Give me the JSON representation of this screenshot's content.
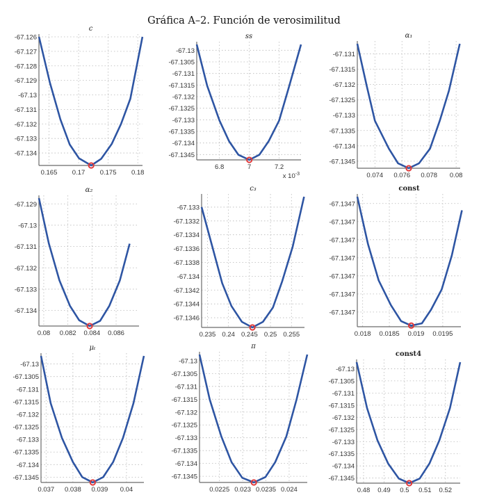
{
  "title": "Gráfica A–2. Función de verosimilitud",
  "colors": {
    "line": "#2e55a3",
    "minimum_marker": "#e23a3a",
    "grid": "#b8b8b8"
  },
  "chart_data": [
    {
      "type": "line",
      "title": "c",
      "grid": true,
      "xlim": [
        0.1633,
        0.1808
      ],
      "ylim": [
        -67.13486,
        -67.126
      ],
      "xticks": [
        0.165,
        0.17,
        0.175,
        0.18
      ],
      "xtick_labels": [
        "0.165",
        "0.17",
        "0.175",
        "0.18"
      ],
      "yticks": [
        -67.126,
        -67.127,
        -67.128,
        -67.129,
        -67.13,
        -67.131,
        -67.132,
        -67.133,
        -67.134
      ],
      "ytick_labels": [
        "-67.126",
        "-67.127",
        "-67.128",
        "-67.129",
        "-67.13",
        "-67.131",
        "-67.132",
        "-67.133",
        "-67.134"
      ],
      "x": [
        0.16331,
        0.16516,
        0.16693,
        0.1685,
        0.17008,
        0.17213,
        0.17382,
        0.17559,
        0.17717,
        0.17874,
        0.18079
      ],
      "y": [
        -67.126,
        -67.12916,
        -67.13169,
        -67.13342,
        -67.13437,
        -67.13486,
        -67.1344,
        -67.13339,
        -67.132,
        -67.13026,
        -67.126
      ],
      "minimum": [
        0.17213,
        -67.13486
      ]
    },
    {
      "type": "line",
      "title": "ss",
      "grid": true,
      "x_multiplier_label": "x 10",
      "x_multiplier_exponent": "-3",
      "xlim": [
        6.648,
        7.346
      ],
      "ylim": [
        -67.13473,
        -67.12975
      ],
      "xticks": [
        6.8,
        7,
        7.2
      ],
      "xtick_labels": [
        "6.8",
        "7",
        "7.2"
      ],
      "yticks": [
        -67.13,
        -67.1305,
        -67.131,
        -67.1315,
        -67.132,
        -67.1325,
        -67.133,
        -67.1335,
        -67.134,
        -67.1345
      ],
      "ytick_labels": [
        "-67.13",
        "-67.1305",
        "-67.131",
        "-67.1315",
        "-67.132",
        "-67.1325",
        "-67.133",
        "-67.1335",
        "-67.134",
        "-67.1345"
      ],
      "x": [
        6.648,
        6.718,
        6.8,
        6.865,
        6.927,
        7.0,
        7.067,
        7.129,
        7.2,
        7.268,
        7.346
      ],
      "y": [
        -67.12975,
        -67.13153,
        -67.13303,
        -67.13393,
        -67.13451,
        -67.13473,
        -67.13451,
        -67.13393,
        -67.13303,
        -67.13153,
        -67.12975
      ],
      "minimum": [
        7.0,
        -67.13473
      ]
    },
    {
      "type": "line",
      "title": "α₁",
      "grid": true,
      "xlim": [
        0.0727,
        0.0803
      ],
      "ylim": [
        -67.13473,
        -67.13067
      ],
      "xticks": [
        0.074,
        0.076,
        0.078,
        0.08
      ],
      "xtick_labels": [
        "0.074",
        "0.076",
        "0.078",
        "0.08"
      ],
      "yticks": [
        -67.131,
        -67.1315,
        -67.132,
        -67.1325,
        -67.133,
        -67.1335,
        -67.134,
        -67.1345
      ],
      "ytick_labels": [
        "-67.131",
        "-67.1315",
        "-67.132",
        "-67.1325",
        "-67.133",
        "-67.1335",
        "-67.134",
        "-67.1345"
      ],
      "x": [
        0.0727,
        0.0734,
        0.074,
        0.07503,
        0.07571,
        0.0765,
        0.07726,
        0.07807,
        0.07879,
        0.07947,
        0.08027
      ],
      "y": [
        -67.13067,
        -67.13205,
        -67.13318,
        -67.13409,
        -67.13457,
        -67.13473,
        -67.13457,
        -67.13409,
        -67.13318,
        -67.1322,
        -67.13067
      ],
      "minimum": [
        0.0765,
        -67.13473
      ]
    },
    {
      "type": "line",
      "title": "α₂",
      "grid": true,
      "xlim": [
        0.0796,
        0.0879
      ],
      "ylim": [
        -67.13473,
        -67.12873
      ],
      "xticks": [
        0.08,
        0.082,
        0.084,
        0.086
      ],
      "xtick_labels": [
        "0.08",
        "0.082",
        "0.084",
        "0.086"
      ],
      "yticks": [
        -67.129,
        -67.13,
        -67.131,
        -67.132,
        -67.133,
        -67.134
      ],
      "ytick_labels": [
        "-67.129",
        "-67.13",
        "-67.131",
        "-67.132",
        "-67.133",
        "-67.134"
      ],
      "x": [
        0.0796,
        0.08042,
        0.0813,
        0.08217,
        0.08294,
        0.08381,
        0.08467,
        0.08544,
        0.08631,
        0.08712
      ],
      "y": [
        -67.12873,
        -67.13085,
        -67.13259,
        -67.13378,
        -67.13446,
        -67.13473,
        -67.13449,
        -67.13378,
        -67.13259,
        -67.13087
      ],
      "minimum": [
        0.08381,
        -67.13473
      ]
    },
    {
      "type": "line",
      "title": "c₃",
      "grid": true,
      "xlim": [
        0.2336,
        0.2581
      ],
      "ylim": [
        -67.13474,
        -67.13285
      ],
      "xticks": [
        0.235,
        0.24,
        0.245,
        0.25,
        0.255
      ],
      "xtick_labels": [
        "0.235",
        "0.24",
        "0.245",
        "0.25",
        "0.255"
      ],
      "yticks": [
        -67.133,
        -67.1332,
        -67.1334,
        -67.1336,
        -67.1338,
        -67.134,
        -67.1342,
        -67.1344,
        -67.1346
      ],
      "ytick_labels": [
        "-67.133",
        "-67.1332",
        "-67.1334",
        "-67.1336",
        "-67.1338",
        "-67.134",
        "-67.1342",
        "-67.1344",
        "-67.1346"
      ],
      "x": [
        0.2336,
        0.2361,
        0.2385,
        0.2407,
        0.2432,
        0.2457,
        0.2482,
        0.2506,
        0.2528,
        0.2553,
        0.258
      ],
      "y": [
        -67.133,
        -67.13356,
        -67.1341,
        -67.13443,
        -67.13466,
        -67.13474,
        -67.13466,
        -67.13445,
        -67.13407,
        -67.13357,
        -67.13285
      ],
      "minimum": [
        0.2457,
        -67.13474
      ]
    },
    {
      "type": "line",
      "title": "const",
      "grid": true,
      "xlim": [
        0.0179,
        0.01984
      ],
      "ylim": [
        -67.1347185,
        -67.134661
      ],
      "xticks": [
        0.018,
        0.0185,
        0.019,
        0.0195
      ],
      "xtick_labels": [
        "0.018",
        "0.0185",
        "0.019",
        "0.0195"
      ],
      "yticks": [
        -67.134664,
        -67.134672,
        -67.13468,
        -67.134688,
        -67.134696,
        -67.134704,
        -67.134712
      ],
      "ytick_labels": [
        "-67.1347",
        "-67.1347",
        "-67.1347",
        "-67.1347",
        "-67.1347",
        "-67.1347",
        "-67.1347"
      ],
      "x": [
        0.0179,
        0.0181,
        0.0183,
        0.01853,
        0.01872,
        0.01891,
        0.01911,
        0.01928,
        0.01948,
        0.01967,
        0.01986
      ],
      "y": [
        -67.134661,
        -67.134682,
        -67.134698,
        -67.134709,
        -67.134716,
        -67.134718,
        -67.134717,
        -67.134711,
        -67.134702,
        -67.134687,
        -67.134667
      ],
      "minimum": [
        0.01891,
        -67.134718
      ]
    },
    {
      "type": "line",
      "title": "μₜ",
      "grid": true,
      "xlim": [
        0.03681,
        0.04065
      ],
      "ylim": [
        -67.13471,
        -67.12968
      ],
      "xticks": [
        0.037,
        0.038,
        0.039,
        0.04
      ],
      "xtick_labels": [
        "0.037",
        "0.038",
        "0.039",
        "0.04"
      ],
      "yticks": [
        -67.13,
        -67.1305,
        -67.131,
        -67.1315,
        -67.132,
        -67.1325,
        -67.133,
        -67.1335,
        -67.134,
        -67.1345
      ],
      "ytick_labels": [
        "-67.13",
        "-67.1305",
        "-67.131",
        "-67.1315",
        "-67.132",
        "-67.1325",
        "-67.133",
        "-67.1335",
        "-67.134",
        "-67.1345"
      ],
      "x": [
        0.03681,
        0.03717,
        0.03759,
        0.038,
        0.03835,
        0.03874,
        0.03913,
        0.0395,
        0.03987,
        0.04026,
        0.04065
      ],
      "y": [
        -67.12968,
        -67.13156,
        -67.13294,
        -67.1339,
        -67.1345,
        -67.13471,
        -67.1345,
        -67.1339,
        -67.13294,
        -67.13156,
        -67.12968
      ],
      "minimum": [
        0.03874,
        -67.13471
      ]
    },
    {
      "type": "line",
      "title": "π",
      "grid": true,
      "xlim": [
        0.02207,
        0.02439
      ],
      "ylim": [
        -67.13474,
        -67.12976
      ],
      "xticks": [
        0.0225,
        0.023,
        0.0235,
        0.024
      ],
      "xtick_labels": [
        "0.0225",
        "0.023",
        "0.0235",
        "0.024"
      ],
      "yticks": [
        -67.13,
        -67.1305,
        -67.131,
        -67.1315,
        -67.132,
        -67.1325,
        -67.133,
        -67.1335,
        -67.134,
        -67.1345
      ],
      "ytick_labels": [
        "-67.13",
        "-67.1305",
        "-67.131",
        "-67.1315",
        "-67.132",
        "-67.1325",
        "-67.133",
        "-67.1335",
        "-67.134",
        "-67.1345"
      ],
      "x": [
        0.02207,
        0.02229,
        0.02254,
        0.02276,
        0.02299,
        0.02324,
        0.02349,
        0.0237,
        0.02394,
        0.02416,
        0.02439
      ],
      "y": [
        -67.12976,
        -67.13151,
        -67.13295,
        -67.13395,
        -67.13456,
        -67.13474,
        -67.13453,
        -67.13395,
        -67.13295,
        -67.13151,
        -67.12976
      ],
      "minimum": [
        0.02324,
        -67.13474
      ]
    },
    {
      "type": "line",
      "title": "const4",
      "grid": true,
      "xlim": [
        0.4766,
        0.5272
      ],
      "ylim": [
        -67.13471,
        -67.12973
      ],
      "xticks": [
        0.48,
        0.49,
        0.5,
        0.51,
        0.52
      ],
      "xtick_labels": [
        "0.48",
        "0.49",
        "0.5",
        "0.51",
        "0.52"
      ],
      "yticks": [
        -67.13,
        -67.1305,
        -67.131,
        -67.1315,
        -67.132,
        -67.1325,
        -67.133,
        -67.1335,
        -67.134,
        -67.1345
      ],
      "ytick_labels": [
        "-67.13",
        "-67.1305",
        "-67.131",
        "-67.1315",
        "-67.132",
        "-67.1325",
        "-67.133",
        "-67.1335",
        "-67.134",
        "-67.1345"
      ],
      "x": [
        0.4766,
        0.4817,
        0.4868,
        0.492,
        0.4972,
        0.5023,
        0.5074,
        0.5122,
        0.517,
        0.5222,
        0.5272
      ],
      "y": [
        -67.12973,
        -67.13162,
        -67.13295,
        -67.1339,
        -67.13452,
        -67.13471,
        -67.13452,
        -67.1339,
        -67.13295,
        -67.13162,
        -67.12973
      ],
      "minimum": [
        0.5023,
        -67.13471
      ]
    }
  ]
}
